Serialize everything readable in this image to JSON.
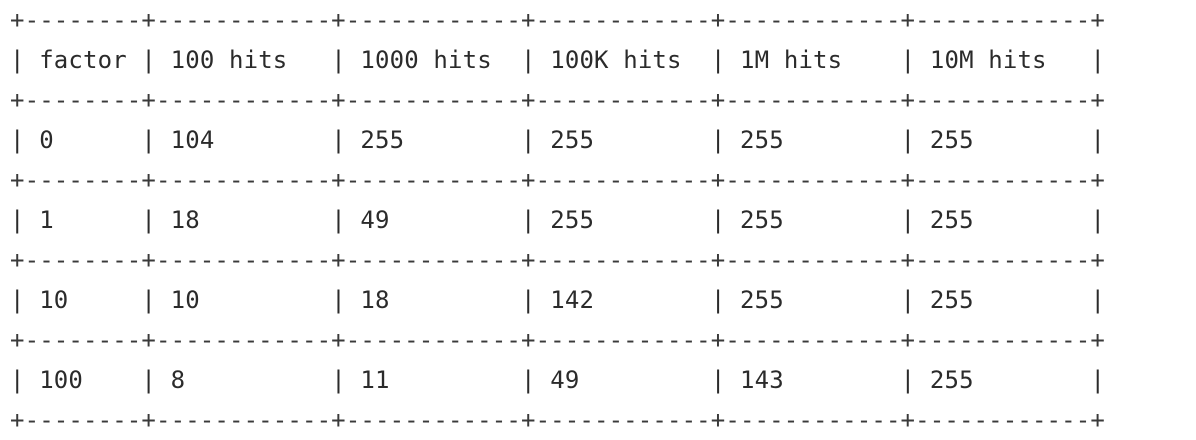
{
  "table": {
    "headers": [
      "factor",
      "100 hits",
      "1000 hits",
      "100K hits",
      "1M hits",
      "10M hits"
    ],
    "rows": [
      [
        "0",
        "104",
        "255",
        "255",
        "255",
        "255"
      ],
      [
        "1",
        "18",
        "49",
        "255",
        "255",
        "255"
      ],
      [
        "10",
        "10",
        "18",
        "142",
        "255",
        "255"
      ],
      [
        "100",
        "8",
        "11",
        "49",
        "143",
        "255"
      ]
    ]
  }
}
